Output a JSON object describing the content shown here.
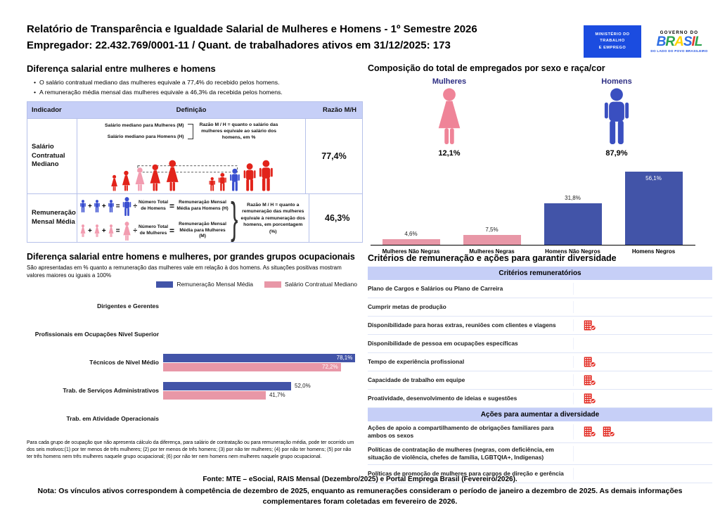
{
  "header": {
    "title_line1": "Relatório de Transparência e Igualdade Salarial de Mulheres e Homens - 1º Semestre 2026",
    "title_line2": "Empregador: 22.432.769/0001-11 / Quant. de trabalhadores ativos em 31/12/2025: 173",
    "mte_logo": {
      "line1": "MINISTÉRIO DO",
      "line2": "TRABALHO",
      "line3": "E EMPREGO"
    },
    "gov_logo": {
      "top": "GOVERNO DO",
      "brand_letters": [
        {
          "ch": "B",
          "color": "#2f6fe4"
        },
        {
          "ch": "R",
          "color": "#2da44e"
        },
        {
          "ch": "A",
          "color": "#ffd400"
        },
        {
          "ch": "S",
          "color": "#2f6fe4"
        },
        {
          "ch": "I",
          "color": "#e23a2e"
        },
        {
          "ch": "L",
          "color": "#2da44e"
        }
      ],
      "tagline": "DO LADO DO POVO BRASILEIRO"
    }
  },
  "salary_gap": {
    "title": "Diferença salarial entre mulheres e homens",
    "bullets": [
      "O salário contratual mediano das mulheres equivale a 77,4% do recebido pelos homens.",
      "A remuneração média mensal das mulheres equivale a 46,3% da recebida pelos homens."
    ],
    "table": {
      "headers": [
        "Indicador",
        "Definição",
        "Razão M/H"
      ],
      "rows": [
        {
          "indicator": "Salário Contratual Mediano",
          "ratio": "77,4%"
        },
        {
          "indicator": "Remuneração Mensal Média",
          "ratio": "46,3%"
        }
      ]
    },
    "row1_diagram": {
      "label_women": "Salário mediano para Mulheres (M)",
      "label_men": "Salário mediano para Homens (H)",
      "explanation": "Razão M / H = quanto o salário das mulheres equivale ao salário dos homens, em %"
    },
    "row2_diagram": {
      "ops": {
        "plus": "+",
        "equals": "=",
        "divide": "÷"
      },
      "men_total": "Número Total de Homens",
      "men_result": "Remuneração Mensal Média para Homens (H)",
      "women_total": "Número Total de Mulheres",
      "women_result": "Remuneração Mensal Média para Mulheres (M)",
      "explanation": "Razão M / H = quanto a remuneração das mulheres equivale à remuneração dos homens, em porcentagem (%)"
    }
  },
  "composition": {
    "title": "Composição do total de empregados por sexo e raça/cor",
    "women_label": "Mulheres",
    "women_pct": "12,1%",
    "men_label": "Homens",
    "men_pct": "87,9%"
  },
  "occupational": {
    "title": "Diferença salarial entre homens e mulheres, por grandes grupos ocupacionais",
    "subtitle": "São apresentadas em % quanto a remuneração das mulheres vale em relação à dos homens. As situações positivas mostram valores maiores ou iguais a 100%",
    "footnote": "Para cada grupo de ocupação que não apresenta cálculo da diferença, para salário de contratação ou para remuneração média, pode ter ocorrido um dos seis motivos:(1) por ter menos de três mulheres; (2) por ter menos de três homens; (3) por não ter mulheres; (4) por não ter homens; (5) por não ter três homens nem três mulheres naquele grupo ocupacional; (6) por não ter nem homens nem mulheres naquele grupo ocupacional."
  },
  "criteria": {
    "title": "Critérios de remuneração e ações para garantir diversidade",
    "sections": [
      {
        "header": "Critérios remuneratórios",
        "rows": [
          {
            "label": "Plano de Cargos e Salários ou Plano de Carreira",
            "icons": 0
          },
          {
            "label": "Cumprir metas de produção",
            "icons": 0
          },
          {
            "label": "Disponibilidade para horas extras, reuniões com clientes e viagens",
            "icons": 1
          },
          {
            "label": "Disponibilidade de pessoa em ocupações específicas",
            "icons": 0
          },
          {
            "label": "Tempo de experiência profissional",
            "icons": 1
          },
          {
            "label": "Capacidade de trabalho em equipe",
            "icons": 1
          },
          {
            "label": "Proatividade, desenvolvimento de ideias e sugestões",
            "icons": 1
          }
        ]
      },
      {
        "header": "Ações para aumentar a diversidade",
        "rows": [
          {
            "label": "Ações de apoio a compartilhamento de obrigações familiares para ambos os sexos",
            "icons": 2
          },
          {
            "label": "Políticas de contratação de mulheres (negras, com deficiência, em situação de violência, chefes de família, LGBTQIA+, Indígenas)",
            "icons": 0
          },
          {
            "label": "Políticas de promoção de mulheres para cargos de direção e gerência",
            "icons": 0
          }
        ]
      }
    ]
  },
  "footer": {
    "fonte": "Fonte: MTE – eSocial, RAIS Mensal (Dezembro/2025) e Portal Emprega Brasil (Fevereiro/2026).",
    "nota": "Nota: Os vínculos ativos correspondem à competência de dezembro de 2025, enquanto as remunerações consideram o período de janeiro a dezembro de 2025. As demais informações complementares foram coletadas em fevereiro de 2026."
  },
  "colors": {
    "blue_bar": "#4254a8",
    "pink_bar": "#e897a7",
    "red_person": "#e2231a",
    "pink_person": "#f29cb0",
    "blue_person": "#3a4fd0",
    "header_bg": "#c6cff7",
    "navy_label": "#2d2e83",
    "icon_red": "#e2231a"
  },
  "chart_data": [
    {
      "type": "bar",
      "title": "Composição do total de empregados por sexo e raça/cor",
      "categories": [
        "Mulheres Não Negras",
        "Mulheres Negras",
        "Homens Não Negros",
        "Homens Negros"
      ],
      "values": [
        4.6,
        7.5,
        31.8,
        56.1
      ],
      "value_labels": [
        "4,6%",
        "7,5%",
        "31,8%",
        "56,1%"
      ],
      "bar_colors": [
        "#e897a7",
        "#e897a7",
        "#4254a8",
        "#4254a8"
      ],
      "xlabel": "",
      "ylabel": "",
      "ylim": [
        0,
        60
      ],
      "grid": false,
      "summary": {
        "women_pct": 12.1,
        "men_pct": 87.9
      }
    },
    {
      "type": "bar",
      "orientation": "horizontal",
      "title": "Diferença salarial entre homens e mulheres, por grandes grupos ocupacionais",
      "categories": [
        "Dirigentes e Gerentes",
        "Profissionais em Ocupações Nível Superior",
        "Técnicos de Nível Médio",
        "Trab. de Serviços Administrativos",
        "Trab. em Atividade Operacionais"
      ],
      "series": [
        {
          "name": "Remuneração Mensal Média",
          "color": "#4254a8",
          "values": [
            null,
            null,
            78.1,
            52.0,
            null
          ],
          "labels": [
            null,
            null,
            "78,1%",
            "52,0%",
            null
          ]
        },
        {
          "name": "Salário Contratual Mediano",
          "color": "#e897a7",
          "values": [
            null,
            null,
            72.2,
            41.7,
            null
          ],
          "labels": [
            null,
            null,
            "72,2%",
            "41,7%",
            null
          ]
        }
      ],
      "xlabel": "",
      "ylabel": "",
      "xlim": [
        0,
        100
      ],
      "grid": false,
      "legend_position": "top-right"
    }
  ]
}
